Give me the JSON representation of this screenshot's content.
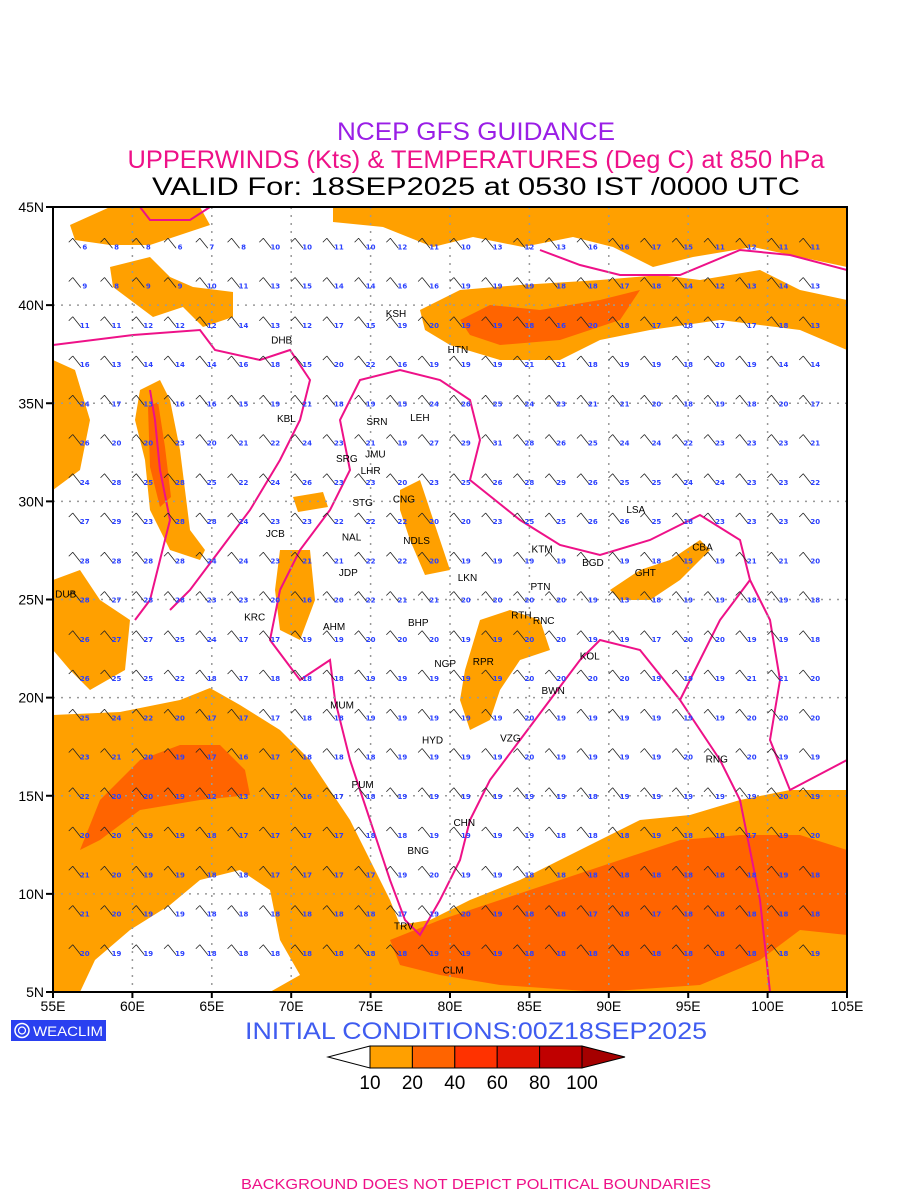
{
  "title": {
    "line1": "NCEP GFS GUIDANCE",
    "line2": "UPPERWINDS (Kts) & TEMPERATURES (Deg C) at 850 hPa",
    "line3": "VALID For: 18SEP2025 at 0530 IST /0000 UTC"
  },
  "colors": {
    "title1": "#9a1ee6",
    "title2": "#ee1188",
    "boundary": "#ee1188",
    "numbers": "#2a40ff",
    "initial": "#3f5cf0",
    "badge": "#2a40f0"
  },
  "axes": {
    "lat_labels": [
      {
        "lat": 45,
        "text": "45N"
      },
      {
        "lat": 40,
        "text": "40N"
      },
      {
        "lat": 35,
        "text": "35N"
      },
      {
        "lat": 30,
        "text": "30N"
      },
      {
        "lat": 25,
        "text": "25N"
      },
      {
        "lat": 20,
        "text": "20N"
      },
      {
        "lat": 15,
        "text": "15N"
      },
      {
        "lat": 10,
        "text": "10N"
      },
      {
        "lat": 5,
        "text": "5N"
      }
    ],
    "lon_labels": [
      {
        "lon": 55,
        "text": "55E"
      },
      {
        "lon": 60,
        "text": "60E"
      },
      {
        "lon": 65,
        "text": "65E"
      },
      {
        "lon": 70,
        "text": "70E"
      },
      {
        "lon": 75,
        "text": "75E"
      },
      {
        "lon": 80,
        "text": "80E"
      },
      {
        "lon": 85,
        "text": "85E"
      },
      {
        "lon": 90,
        "text": "90E"
      },
      {
        "lon": 95,
        "text": "95E"
      },
      {
        "lon": 100,
        "text": "100E"
      },
      {
        "lon": 105,
        "text": "105E"
      }
    ]
  },
  "temperature_grid": {
    "lons": [
      57,
      59,
      61,
      63,
      65,
      67,
      69,
      71,
      73,
      75,
      77,
      79,
      81,
      83,
      85,
      87,
      89,
      91,
      93,
      95,
      97,
      99,
      101,
      103
    ],
    "lats": [
      43,
      41,
      39,
      37,
      35,
      33,
      31,
      29,
      27,
      25,
      23,
      21,
      19,
      17,
      15,
      13,
      11,
      9,
      7
    ],
    "values": [
      [
        6,
        8,
        8,
        6,
        7,
        8,
        10,
        10,
        11,
        10,
        12,
        11,
        10,
        13,
        12,
        13,
        16,
        16,
        17,
        15,
        11,
        12,
        11,
        11
      ],
      [
        9,
        8,
        9,
        9,
        10,
        11,
        13,
        15,
        14,
        14,
        16,
        16,
        19,
        19,
        19,
        18,
        18,
        17,
        18,
        14,
        12,
        13,
        14,
        13
      ],
      [
        11,
        11,
        12,
        12,
        12,
        14,
        13,
        12,
        17,
        15,
        19,
        20,
        19,
        19,
        18,
        16,
        20,
        18,
        17,
        18,
        17,
        17,
        18,
        13
      ],
      [
        16,
        13,
        14,
        14,
        14,
        16,
        18,
        15,
        20,
        22,
        16,
        19,
        19,
        19,
        21,
        21,
        18,
        19,
        19,
        18,
        20,
        19,
        14,
        14
      ],
      [
        24,
        17,
        13,
        16,
        16,
        15,
        19,
        21,
        18,
        19,
        15,
        24,
        26,
        25,
        24,
        23,
        21,
        21,
        20,
        18,
        19,
        18,
        20,
        17
      ],
      [
        26,
        20,
        20,
        23,
        20,
        21,
        22,
        24,
        23,
        21,
        19,
        27,
        29,
        31,
        28,
        26,
        25,
        24,
        24,
        22,
        23,
        23,
        23,
        21
      ],
      [
        24,
        28,
        25,
        28,
        25,
        22,
        24,
        26,
        23,
        23,
        20,
        23,
        25,
        26,
        28,
        29,
        26,
        25,
        25,
        24,
        24,
        23,
        23,
        22
      ],
      [
        27,
        29,
        23,
        28,
        28,
        24,
        23,
        23,
        22,
        22,
        22,
        20,
        20,
        23,
        25,
        25,
        26,
        26,
        25,
        18,
        23,
        23,
        23,
        20
      ],
      [
        28,
        28,
        28,
        28,
        24,
        24,
        23,
        21,
        21,
        22,
        22,
        20,
        19,
        19,
        19,
        19,
        null,
        19,
        18,
        15,
        19,
        21,
        21,
        20
      ],
      [
        28,
        27,
        28,
        28,
        23,
        23,
        20,
        16,
        20,
        22,
        21,
        21,
        20,
        20,
        20,
        20,
        19,
        13,
        18,
        19,
        19,
        18,
        19,
        18
      ],
      [
        26,
        27,
        27,
        25,
        24,
        17,
        17,
        19,
        19,
        20,
        20,
        20,
        19,
        19,
        20,
        20,
        19,
        19,
        17,
        20,
        20,
        19,
        19,
        18
      ],
      [
        26,
        25,
        25,
        22,
        18,
        17,
        18,
        18,
        18,
        19,
        19,
        19,
        19,
        19,
        20,
        20,
        20,
        20,
        19,
        19,
        19,
        21,
        21,
        20
      ],
      [
        25,
        24,
        22,
        20,
        17,
        17,
        17,
        18,
        18,
        19,
        19,
        19,
        19,
        19,
        20,
        19,
        19,
        19,
        19,
        19,
        19,
        20,
        20,
        20
      ],
      [
        23,
        21,
        20,
        19,
        17,
        16,
        17,
        18,
        18,
        18,
        19,
        19,
        19,
        19,
        20,
        19,
        19,
        19,
        19,
        20,
        null,
        20,
        19,
        19
      ],
      [
        22,
        20,
        20,
        19,
        12,
        13,
        17,
        16,
        17,
        18,
        19,
        19,
        19,
        19,
        19,
        19,
        18,
        19,
        19,
        19,
        19,
        19,
        20,
        19
      ],
      [
        20,
        20,
        19,
        19,
        18,
        17,
        17,
        17,
        17,
        18,
        18,
        19,
        19,
        19,
        19,
        18,
        18,
        18,
        19,
        18,
        18,
        17,
        19,
        20
      ],
      [
        21,
        20,
        19,
        19,
        18,
        18,
        17,
        17,
        17,
        17,
        19,
        20,
        19,
        19,
        18,
        18,
        18,
        18,
        18,
        18,
        18,
        18,
        19,
        18
      ],
      [
        21,
        20,
        19,
        19,
        18,
        18,
        18,
        18,
        18,
        18,
        17,
        19,
        20,
        19,
        18,
        18,
        17,
        18,
        17,
        18,
        18,
        18,
        18,
        18
      ],
      [
        20,
        19,
        19,
        19,
        18,
        18,
        18,
        18,
        18,
        18,
        18,
        19,
        19,
        19,
        18,
        18,
        18,
        18,
        18,
        18,
        18,
        18,
        18,
        19
      ]
    ]
  },
  "stations": [
    {
      "id": "KSH",
      "lon": 76.6,
      "lat": 39.6
    },
    {
      "id": "DHB",
      "lon": 69.4,
      "lat": 38.7
    },
    {
      "id": "HTN",
      "lon": 80.5,
      "lat": 37.3
    },
    {
      "id": "KBL",
      "lon": 69.7,
      "lat": 34.7
    },
    {
      "id": "SRN",
      "lon": 75.4,
      "lat": 34.1
    },
    {
      "id": "LEH",
      "lon": 78.1,
      "lat": 34.3
    },
    {
      "id": "JMU",
      "lon": 75.3,
      "lat": 32.9
    },
    {
      "id": "SRG",
      "lon": 73.5,
      "lat": 32.2
    },
    {
      "id": "LHR",
      "lon": 75.0,
      "lat": 31.6
    },
    {
      "id": "CNG",
      "lon": 77.1,
      "lat": 30.6
    },
    {
      "id": "STG",
      "lon": 74.5,
      "lat": 29.5
    },
    {
      "id": "LSA",
      "lon": 91.7,
      "lat": 29.6
    },
    {
      "id": "JCB",
      "lon": 69.0,
      "lat": 28.4
    },
    {
      "id": "NAL",
      "lon": 73.8,
      "lat": 28.2
    },
    {
      "id": "NDLS",
      "lon": 77.9,
      "lat": 28.5
    },
    {
      "id": "KTM",
      "lon": 85.8,
      "lat": 27.6
    },
    {
      "id": "CBA",
      "lon": 95.9,
      "lat": 27.7
    },
    {
      "id": "BGD",
      "lon": 89.0,
      "lat": 26.9
    },
    {
      "id": "LKN",
      "lon": 81.1,
      "lat": 26.6
    },
    {
      "id": "GHT",
      "lon": 92.3,
      "lat": 26.4
    },
    {
      "id": "JDP",
      "lon": 73.6,
      "lat": 26.4
    },
    {
      "id": "DUB",
      "lon": 55.8,
      "lat": 25.3
    },
    {
      "id": "PTN",
      "lon": 85.7,
      "lat": 25.7
    },
    {
      "id": "RTH",
      "lon": 84.5,
      "lat": 24.7
    },
    {
      "id": "KRC",
      "lon": 67.7,
      "lat": 24.6
    },
    {
      "id": "AHM",
      "lon": 72.7,
      "lat": 23.2
    },
    {
      "id": "BHP",
      "lon": 78.0,
      "lat": 23.4
    },
    {
      "id": "RNC",
      "lon": 85.9,
      "lat": 23.5
    },
    {
      "id": "KOL",
      "lon": 88.8,
      "lat": 22.6
    },
    {
      "id": "NGP",
      "lon": 79.7,
      "lat": 21.3
    },
    {
      "id": "RPR",
      "lon": 82.1,
      "lat": 21.4
    },
    {
      "id": "BWN",
      "lon": 86.5,
      "lat": 20.4
    },
    {
      "id": "MUM",
      "lon": 73.2,
      "lat": 19.2
    },
    {
      "id": "HYD",
      "lon": 78.9,
      "lat": 17.4
    },
    {
      "id": "VZG",
      "lon": 83.8,
      "lat": 17.5
    },
    {
      "id": "RNG",
      "lon": 96.8,
      "lat": 16.9
    },
    {
      "id": "PUM",
      "lon": 74.5,
      "lat": 15.6
    },
    {
      "id": "CHN",
      "lon": 80.9,
      "lat": 13.2
    },
    {
      "id": "BNG",
      "lon": 78.0,
      "lat": 12.7
    },
    {
      "id": "TRV",
      "lon": 77.1,
      "lat": 8.4
    },
    {
      "id": "CLM",
      "lon": 80.2,
      "lat": 6.6
    }
  ],
  "footer": {
    "badge": "WEACLIM",
    "initial_conditions": "INITIAL  CONDITIONS:00Z18SEP2025",
    "disclaimer": "BACKGROUND DOES NOT DEPICT POLITICAL BOUNDARIES"
  },
  "colorbar": {
    "labels": [
      "10",
      "20",
      "40",
      "60",
      "80",
      "100"
    ],
    "colors": [
      "#ffffff",
      "#ffa000",
      "#ff6400",
      "#ff3200",
      "#e11400",
      "#c00000",
      "#a50000"
    ]
  }
}
